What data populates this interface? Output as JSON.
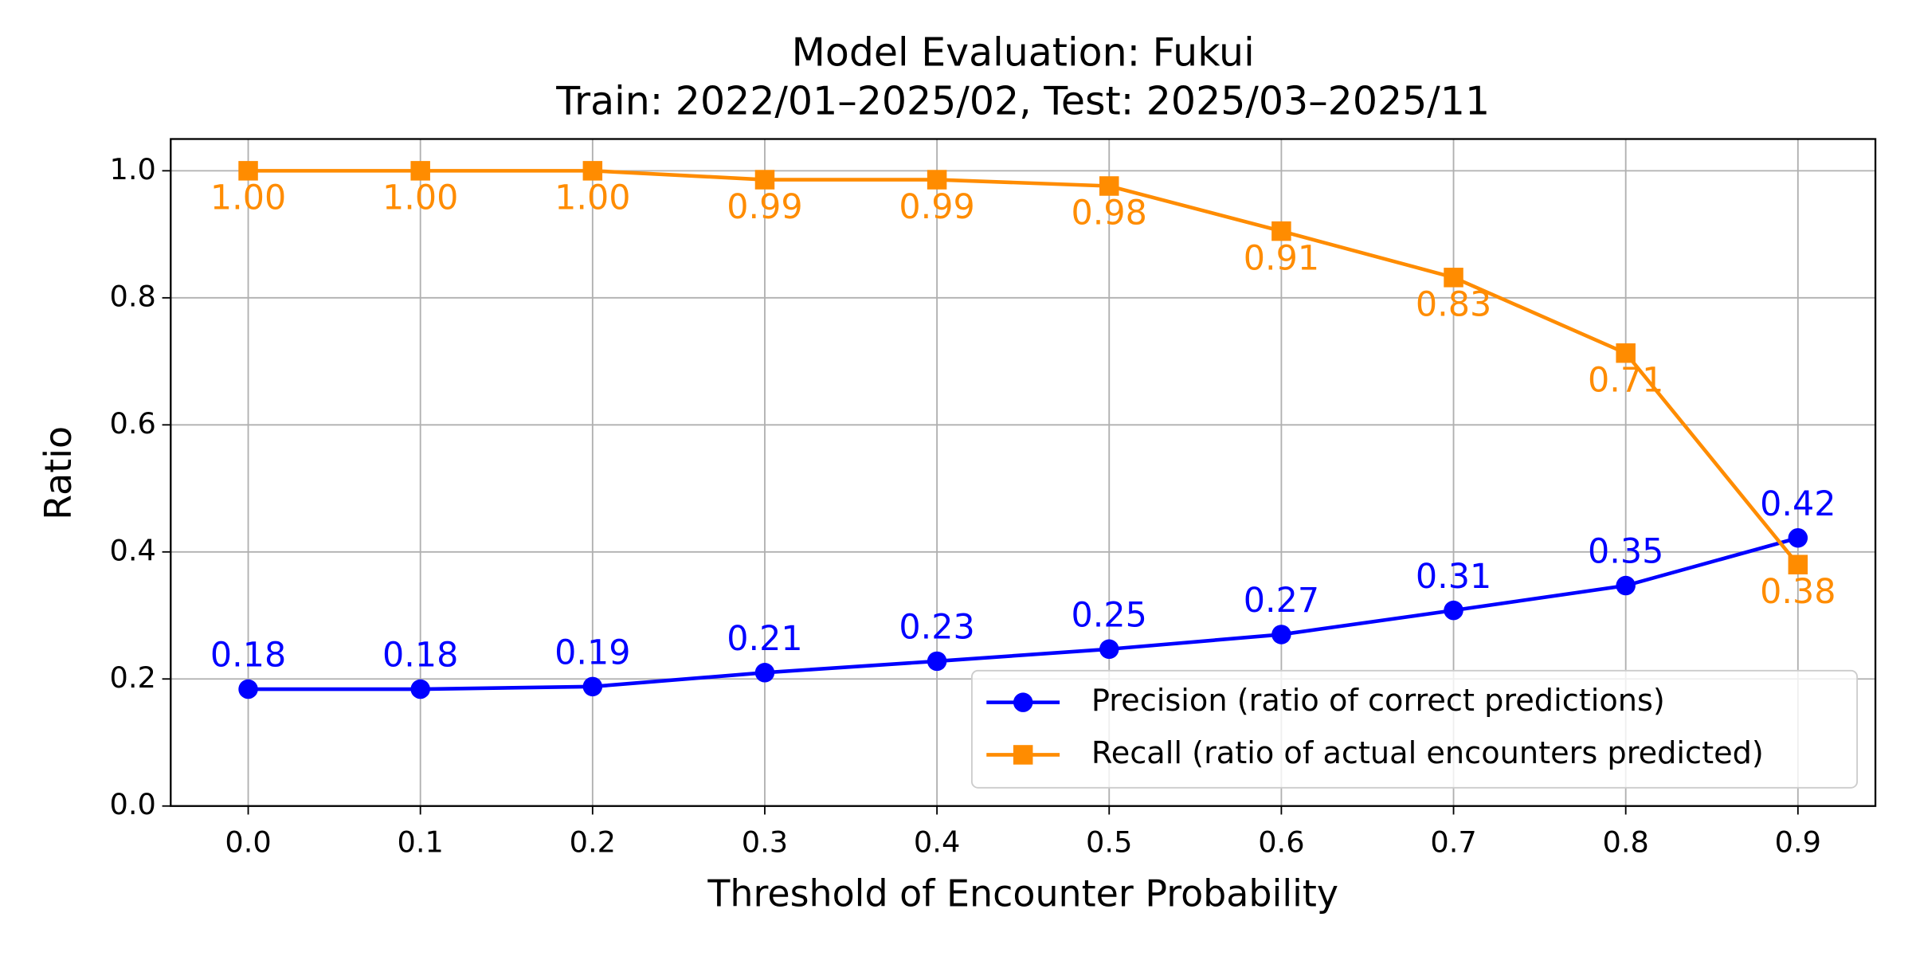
{
  "chart_data": {
    "type": "line",
    "title": "Model Evaluation: Fukui",
    "subtitle": "Train: 2022/01–2025/02, Test: 2025/03–2025/11",
    "x_label": "Threshold of Encounter Probability",
    "y_label": "Ratio",
    "x": [
      0,
      0.1,
      0.2,
      0.3,
      0.4,
      0.5,
      0.6,
      0.7,
      0.8,
      0.9
    ],
    "series": [
      {
        "name": "Precision (ratio of correct predictions)",
        "color": "#0000ff",
        "marker": "circle",
        "values": [
          0.184,
          0.184,
          0.188,
          0.21,
          0.228,
          0.247,
          0.27,
          0.308,
          0.347,
          0.422
        ],
        "value_labels": [
          "0.18",
          "0.18",
          "0.19",
          "0.21",
          "0.23",
          "0.25",
          "0.27",
          "0.31",
          "0.35",
          "0.42"
        ],
        "label_position": "above"
      },
      {
        "name": "Recall (ratio of actual encounters predicted)",
        "color": "#ff8c00",
        "marker": "square",
        "values": [
          1.0,
          1.0,
          1.0,
          0.986,
          0.986,
          0.976,
          0.905,
          0.832,
          0.713,
          0.38
        ],
        "value_labels": [
          "1.00",
          "1.00",
          "1.00",
          "0.99",
          "0.99",
          "0.98",
          "0.91",
          "0.83",
          "0.71",
          "0.38"
        ],
        "label_position": "below"
      }
    ],
    "xlim": [
      -0.045,
      0.945
    ],
    "xticks": [
      {
        "value": 0,
        "label": "0.0"
      },
      0.1,
      0.2,
      0.3,
      0.4,
      0.5,
      0.6,
      0.7,
      0.8,
      0.9
    ],
    "ylim": [
      0,
      1.05
    ],
    "yticks": [
      {
        "value": 0,
        "label": "0.0"
      },
      0.2,
      0.4,
      0.6,
      0.8,
      {
        "value": 1,
        "label": "1.0"
      }
    ],
    "grid": true,
    "legend": "lower right"
  }
}
